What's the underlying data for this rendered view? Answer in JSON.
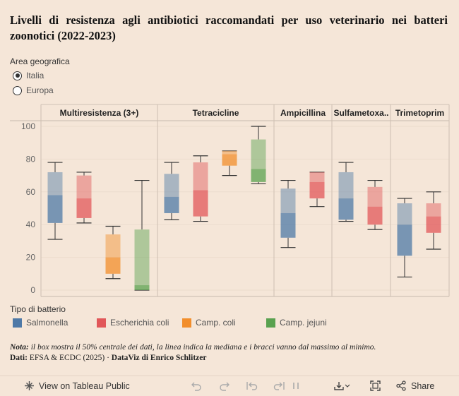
{
  "title": "Livelli di resistenza agli antibiotici raccomandati per uso veterinario nei batteri zoonotici (2022-2023)",
  "filter": {
    "label": "Area geografica",
    "options": [
      {
        "label": "Italia",
        "selected": true
      },
      {
        "label": "Europa",
        "selected": false
      }
    ]
  },
  "legend": {
    "title": "Tipo di batterio",
    "items": [
      {
        "label": "Salmonella",
        "color": "#4e79a7"
      },
      {
        "label": "Escherichia coli",
        "color": "#e15759"
      },
      {
        "label": "Camp. coli",
        "color": "#f28e2b"
      },
      {
        "label": "Camp. jejuni",
        "color": "#59a14f"
      }
    ]
  },
  "note": {
    "prefix": "Nota:",
    "text": "il box mostra il 50% centrale dei dati, la linea indica la mediana e i bracci vanno dal massimo al minimo.",
    "source_prefix": "Dati:",
    "source": "EFSA & ECDC (2025)",
    "credit": "DataViz di Enrico Schlitzer"
  },
  "toolbar": {
    "view_label": "View on Tableau Public",
    "share_label": "Share"
  },
  "chart_data": {
    "type": "boxplot",
    "ylim": [
      0,
      100
    ],
    "yticks": [
      0,
      20,
      40,
      60,
      80,
      100
    ],
    "panels": [
      {
        "name": "Multiresistenza (3+)",
        "boxes": [
          {
            "series": "Salmonella",
            "min": 31,
            "q1": 41,
            "median": 58,
            "q3": 72,
            "max": 78
          },
          {
            "series": "Escherichia coli",
            "min": 41,
            "q1": 44,
            "median": 56,
            "q3": 70,
            "max": 72
          },
          {
            "series": "Camp. coli",
            "min": 7,
            "q1": 10,
            "median": 20,
            "q3": 34,
            "max": 39
          },
          {
            "series": "Camp. jejuni",
            "min": 0,
            "q1": 0,
            "median": 3,
            "q3": 37,
            "max": 67
          }
        ]
      },
      {
        "name": "Tetracicline",
        "boxes": [
          {
            "series": "Salmonella",
            "min": 43,
            "q1": 47,
            "median": 57,
            "q3": 71,
            "max": 78
          },
          {
            "series": "Escherichia coli",
            "min": 42,
            "q1": 45,
            "median": 61,
            "q3": 78,
            "max": 82
          },
          {
            "series": "Camp. coli",
            "min": 70,
            "q1": 76,
            "median": 83,
            "q3": 85,
            "max": 85
          },
          {
            "series": "Camp. jejuni",
            "min": 65,
            "q1": 66,
            "median": 74,
            "q3": 92,
            "max": 100
          }
        ]
      },
      {
        "name": "Ampicillina",
        "boxes": [
          {
            "series": "Salmonella",
            "min": 26,
            "q1": 32,
            "median": 47,
            "q3": 62,
            "max": 67
          },
          {
            "series": "Escherichia coli",
            "min": 51,
            "q1": 56,
            "median": 66,
            "q3": 72,
            "max": 72
          }
        ]
      },
      {
        "name": "Sulfametoxa..",
        "boxes": [
          {
            "series": "Salmonella",
            "min": 42,
            "q1": 43,
            "median": 56,
            "q3": 72,
            "max": 78
          },
          {
            "series": "Escherichia coli",
            "min": 37,
            "q1": 40,
            "median": 51,
            "q3": 63,
            "max": 67
          }
        ]
      },
      {
        "name": "Trimetoprim",
        "boxes": [
          {
            "series": "Salmonella",
            "min": 8,
            "q1": 21,
            "median": 40,
            "q3": 53,
            "max": 56
          },
          {
            "series": "Escherichia coli",
            "min": 25,
            "q1": 35,
            "median": 45,
            "q3": 53,
            "max": 60
          }
        ]
      }
    ]
  }
}
